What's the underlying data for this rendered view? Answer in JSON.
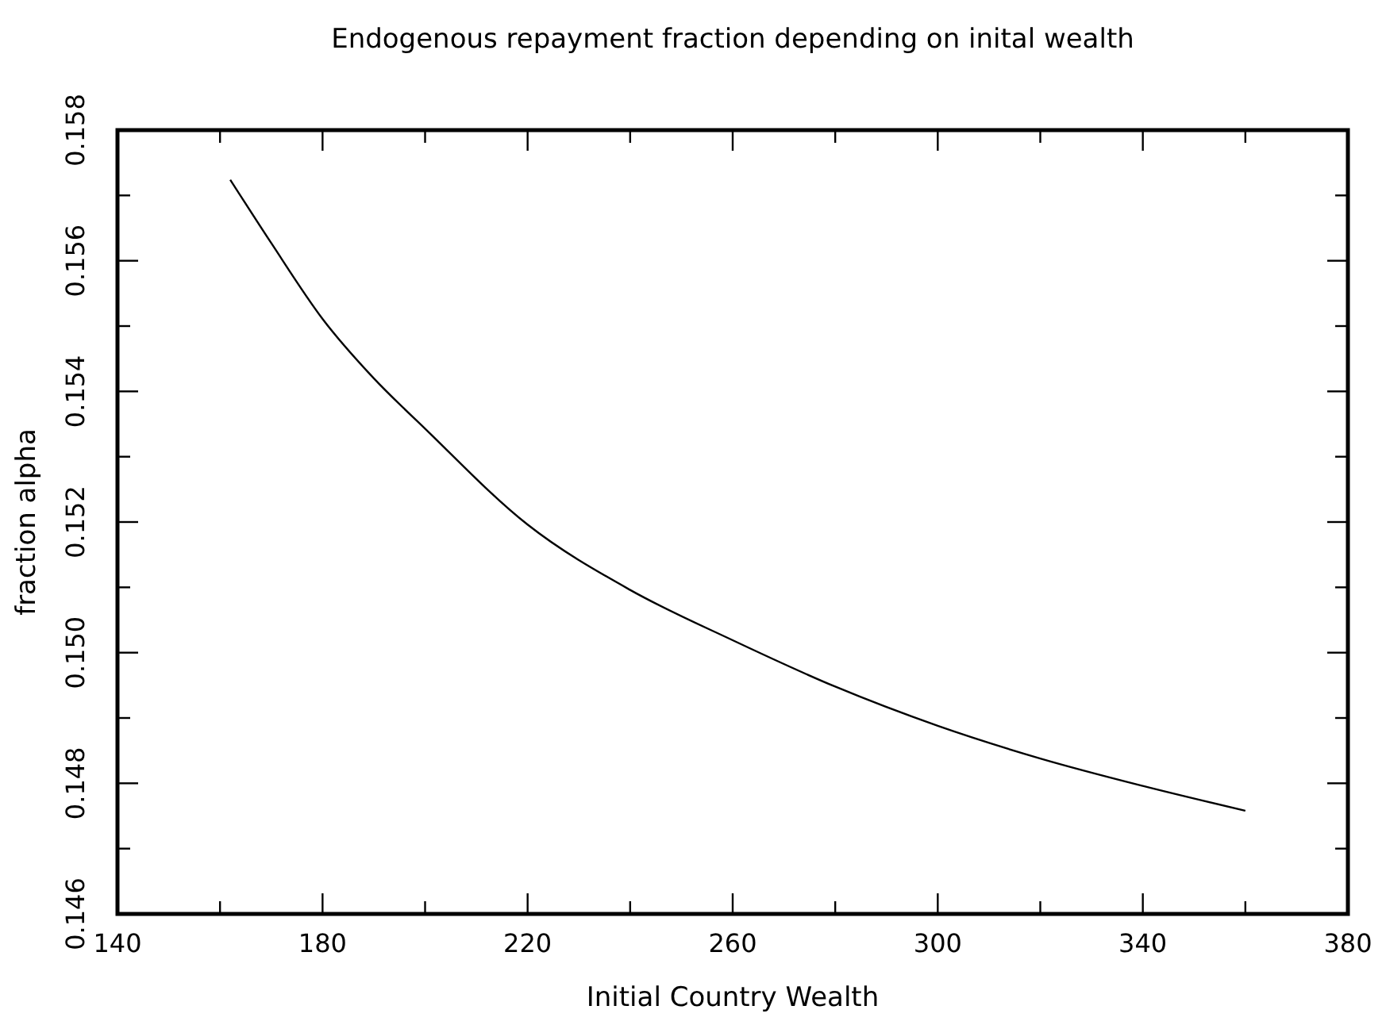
{
  "chart_data": {
    "type": "line",
    "title": "Endogenous repayment fraction depending on inital wealth",
    "xlabel": "Initial Country Wealth",
    "ylabel": "fraction alpha",
    "x": [
      162,
      170,
      180,
      190,
      200,
      220,
      240,
      260,
      280,
      300,
      320,
      340,
      360
    ],
    "series": [
      {
        "color": "#000000",
        "values": [
          0.15724,
          0.15627,
          0.15511,
          0.1542,
          0.15343,
          0.15196,
          0.15096,
          0.15019,
          0.14948,
          0.14888,
          0.14838,
          0.14796,
          0.14758
        ]
      }
    ],
    "xlim": [
      140,
      380
    ],
    "xticks": [
      140,
      {
        "value": 160,
        "label": null
      },
      180,
      {
        "value": 200,
        "label": null
      },
      220,
      {
        "value": 240,
        "label": null
      },
      260,
      {
        "value": 280,
        "label": null
      },
      300,
      {
        "value": 320,
        "label": null
      },
      340,
      {
        "value": 360,
        "label": null
      },
      380
    ],
    "ylim": [
      0.146,
      0.158
    ],
    "yticks": [
      0.146,
      {
        "value": 0.147,
        "label": null
      },
      0.148,
      {
        "value": 0.149,
        "label": null
      },
      {
        "value": 0.15,
        "label": "0.150"
      },
      {
        "value": 0.151,
        "label": null
      },
      0.152,
      {
        "value": 0.153,
        "label": null
      },
      0.154,
      {
        "value": 0.155,
        "label": null
      },
      0.156,
      {
        "value": 0.157,
        "label": null
      },
      0.158
    ],
    "grid": false,
    "marker": "none",
    "line_style": "solid"
  }
}
